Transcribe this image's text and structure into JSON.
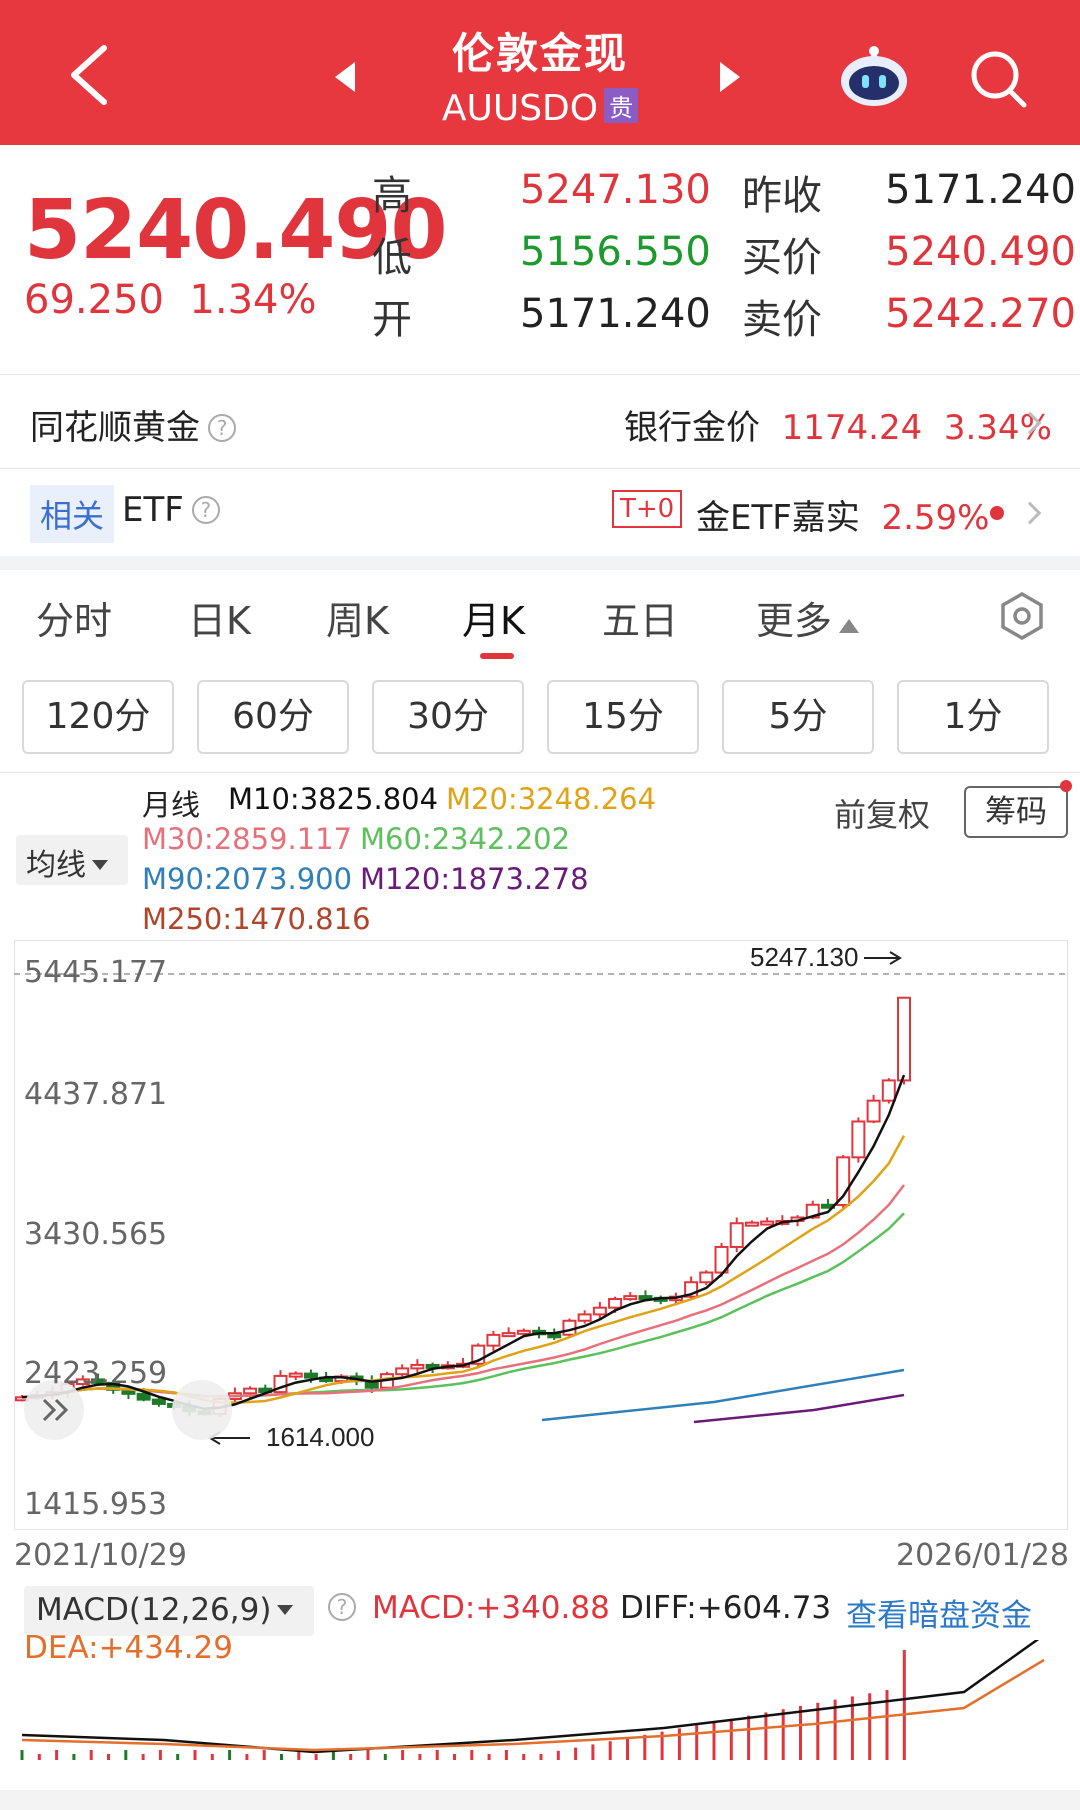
{
  "header": {
    "title": "伦敦金现",
    "symbol": "AUUSDO",
    "badge": "贵",
    "icons": [
      "back-chevron-icon",
      "prev-triangle-icon",
      "next-triangle-icon",
      "robot-assistant-icon",
      "search-icon"
    ]
  },
  "quote": {
    "price": "5240.490",
    "change": "69.250",
    "change_pct": "1.34%",
    "high_label": "高",
    "high": "5247.130",
    "low_label": "低",
    "low": "5156.550",
    "open_label": "开",
    "open": "5171.240",
    "prev_close_label": "昨收",
    "prev_close": "5171.240",
    "bid_label": "买价",
    "bid": "5240.490",
    "ask_label": "卖价",
    "ask": "5242.270"
  },
  "ths_gold": {
    "label": "同花顺黄金",
    "help": "?",
    "bank_label": "银行金价",
    "bank_price": "1174.24",
    "bank_pct": "3.34%"
  },
  "etf": {
    "tag": "相关",
    "label": "ETF",
    "help": "?",
    "t0": "T+0",
    "name": "金ETF嘉实",
    "pct": "2.59%"
  },
  "tabs": [
    "分时",
    "日K",
    "周K",
    "月K",
    "五日",
    "更多"
  ],
  "active_tab": "月K",
  "periods": [
    "120分",
    "60分",
    "30分",
    "15分",
    "5分",
    "1分"
  ],
  "ma": {
    "selector": "均线",
    "line_label": "月线",
    "m10": "M10:3825.804",
    "m20": "M20:3248.264",
    "m30": "M30:2859.117",
    "m60": "M60:2342.202",
    "m90": "M90:2073.900",
    "m120": "M120:1873.278",
    "m250": "M250:1470.816",
    "adjust": "前复权",
    "chip": "筹码",
    "colors": {
      "m10": "#111111",
      "m20": "#e0a317",
      "m30": "#e8707a",
      "m60": "#5cc05c",
      "m90": "#2f7fb8",
      "m120": "#6a1b7a",
      "m250": "#b0452a"
    }
  },
  "chart_data": {
    "type": "candlestick",
    "yticks": [
      "5445.177",
      "4437.871",
      "3430.565",
      "2423.259",
      "1415.953"
    ],
    "x_start": "2021/10/29",
    "x_end": "2026/01/28",
    "high_annotation": "5247.130",
    "low_annotation": "1614.000"
  },
  "macd": {
    "selector": "MACD(12,26,9)",
    "help": "?",
    "macd": "MACD:+340.88",
    "diff": "DIFF:+604.73",
    "dea": "DEA:+434.29",
    "link": "查看暗盘资金"
  }
}
